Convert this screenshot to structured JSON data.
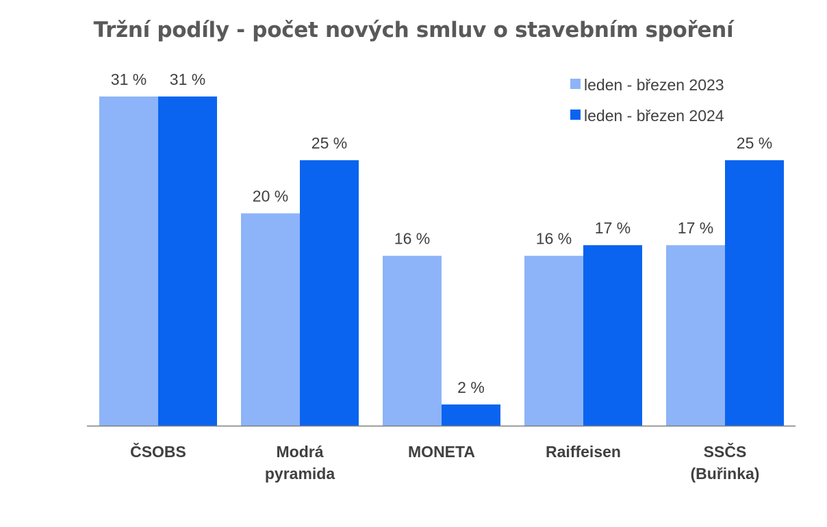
{
  "chart_data": {
    "type": "bar",
    "title": "Tržní podíly - počet nových smluv o stavebním spoření",
    "categories": [
      [
        "ČSOBS"
      ],
      [
        "Modrá",
        "pyramida"
      ],
      [
        "MONETA"
      ],
      [
        "Raiffeisen"
      ],
      [
        "SSČS",
        "(Buřinka)"
      ]
    ],
    "series": [
      {
        "name": "leden - březen 2023",
        "color": "#8DB4F8",
        "values": [
          31,
          20,
          16,
          16,
          17
        ],
        "labels": [
          "31 %",
          "20 %",
          "16 %",
          "16 %",
          "17 %"
        ]
      },
      {
        "name": "leden - březen 2024",
        "color": "#0A64F0",
        "values": [
          31,
          25,
          2,
          17,
          25
        ],
        "labels": [
          "31 %",
          "25 %",
          "2 %",
          "17 %",
          "25 %"
        ]
      }
    ],
    "ylim": [
      0,
      31
    ],
    "grid": false,
    "legend_position": "top-right",
    "unit": "%"
  }
}
